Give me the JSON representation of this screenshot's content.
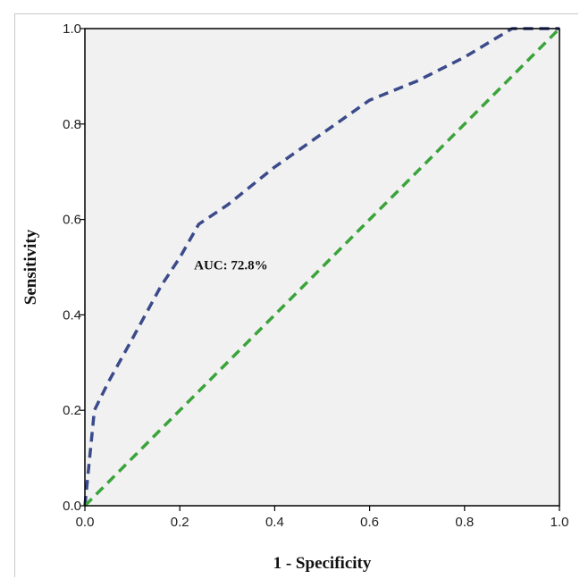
{
  "chart_data": {
    "type": "line",
    "title": "",
    "xlabel": "1 - Specificity",
    "ylabel": "Sensitivity",
    "xlim": [
      0,
      1
    ],
    "ylim": [
      0,
      1
    ],
    "xticks": [
      "0.0",
      "0.2",
      "0.4",
      "0.6",
      "0.8",
      "1.0"
    ],
    "yticks": [
      "0.0",
      "0.2",
      "0.4",
      "0.6",
      "0.8",
      "1.0"
    ],
    "grid": false,
    "legend": "none",
    "plot_background": "#f1f1f1",
    "annotations": [
      {
        "text": "AUC: 72.8%",
        "x": 0.23,
        "y": 0.495
      }
    ],
    "series": [
      {
        "style": "dashed",
        "color": "#3b4a8a",
        "x": [
          0,
          0.02,
          0.05,
          0.1,
          0.16,
          0.2,
          0.24,
          0.3,
          0.4,
          0.5,
          0.6,
          0.7,
          0.8,
          0.9,
          1.0
        ],
        "y": [
          0,
          0.2,
          0.26,
          0.35,
          0.46,
          0.52,
          0.59,
          0.63,
          0.71,
          0.78,
          0.85,
          0.89,
          0.94,
          1.0,
          1.0
        ]
      },
      {
        "style": "dashed",
        "color": "#3aa33a",
        "x": [
          0,
          1
        ],
        "y": [
          0,
          1
        ]
      }
    ]
  }
}
